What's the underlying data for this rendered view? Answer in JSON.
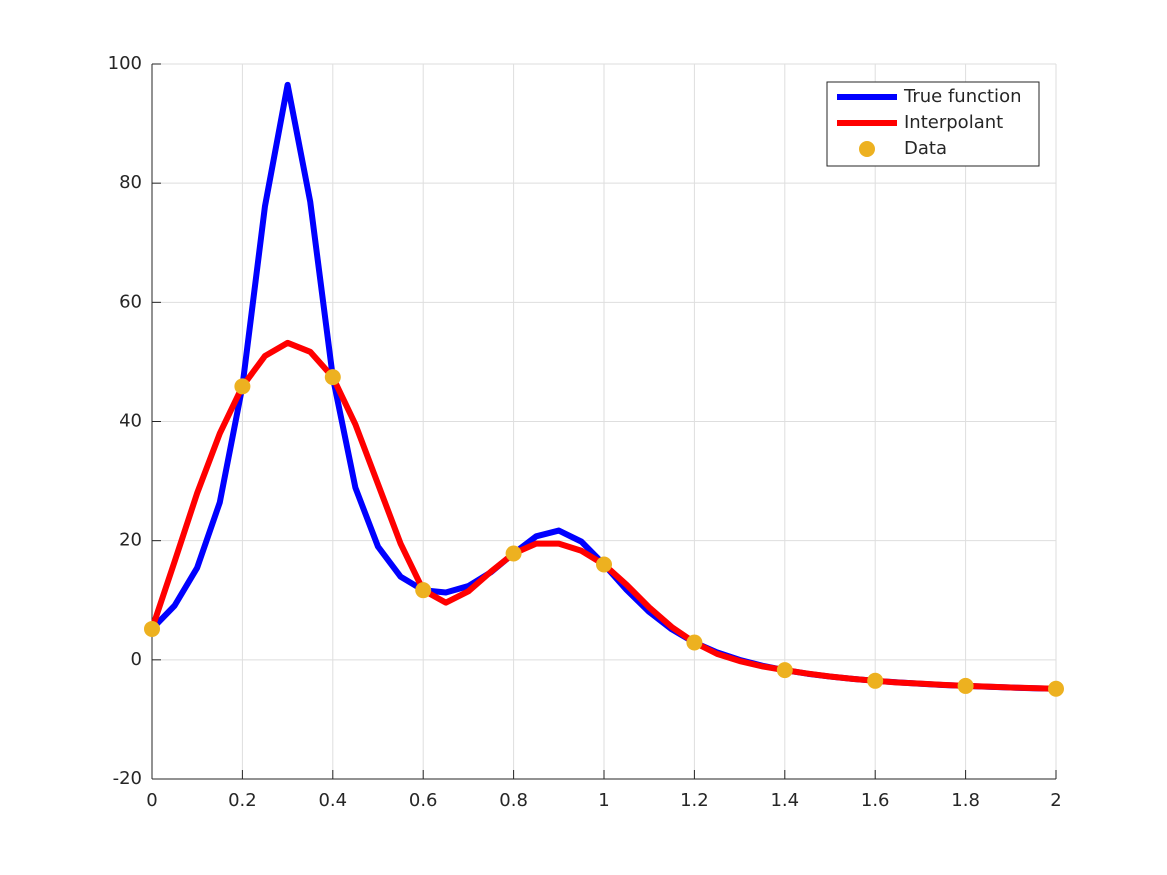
{
  "chart_data": {
    "type": "line",
    "x": [
      0,
      0.05,
      0.1,
      0.15,
      0.2,
      0.25,
      0.3,
      0.35,
      0.4,
      0.45,
      0.5,
      0.55,
      0.6,
      0.65,
      0.7,
      0.75,
      0.8,
      0.85,
      0.9,
      0.95,
      1,
      1.05,
      1.1,
      1.15,
      1.2,
      1.25,
      1.3,
      1.35,
      1.4,
      1.45,
      1.5,
      1.55,
      1.6,
      1.65,
      1.7,
      1.75,
      1.8,
      1.85,
      1.9,
      1.95,
      2
    ],
    "series": [
      {
        "name": "True function",
        "color": "#0000ff",
        "values": [
          5.18,
          9.1,
          15.47,
          26.43,
          45.89,
          76.16,
          96.5,
          76.92,
          47.45,
          28.89,
          19.0,
          13.95,
          11.69,
          11.3,
          12.38,
          14.71,
          17.85,
          20.73,
          21.7,
          19.84,
          16.0,
          11.75,
          8.04,
          5.12,
          2.91,
          1.25,
          -0.01,
          -0.98,
          -1.73,
          -2.33,
          -2.81,
          -3.2,
          -3.52,
          -3.79,
          -4.02,
          -4.22,
          -4.38,
          -4.52,
          -4.65,
          -4.76,
          -4.85
        ]
      },
      {
        "name": "Interpolant",
        "color": "#ff0000",
        "values": [
          5.18,
          16.5,
          28,
          38,
          45.89,
          51,
          53.2,
          51.7,
          47.45,
          39.5,
          29.5,
          19.5,
          11.69,
          9.6,
          11.5,
          14.8,
          17.85,
          19.5,
          19.5,
          18.3,
          16.0,
          12.6,
          8.8,
          5.5,
          2.91,
          1.0,
          -0.2,
          -1.1,
          -1.73,
          -2.3,
          -2.8,
          -3.2,
          -3.52,
          -3.8,
          -4.0,
          -4.2,
          -4.38,
          -4.5,
          -4.65,
          -4.75,
          -4.85
        ]
      },
      {
        "name": "Data",
        "color": "#edb120",
        "mode": "markers",
        "x": [
          0,
          0.2,
          0.4,
          0.6,
          0.8,
          1,
          1.2,
          1.4,
          1.6,
          1.8,
          2
        ],
        "values": [
          5.18,
          45.89,
          47.45,
          11.69,
          17.85,
          16.0,
          2.91,
          -1.73,
          -3.52,
          -4.38,
          -4.85
        ]
      }
    ],
    "xlim": [
      0,
      2
    ],
    "ylim": [
      -20,
      100
    ],
    "xticks": [
      0,
      0.2,
      0.4,
      0.6,
      0.8,
      1,
      1.2,
      1.4,
      1.6,
      1.8,
      2
    ],
    "yticks": [
      -20,
      0,
      20,
      40,
      60,
      80,
      100
    ],
    "grid": true,
    "legend": "northeast"
  }
}
